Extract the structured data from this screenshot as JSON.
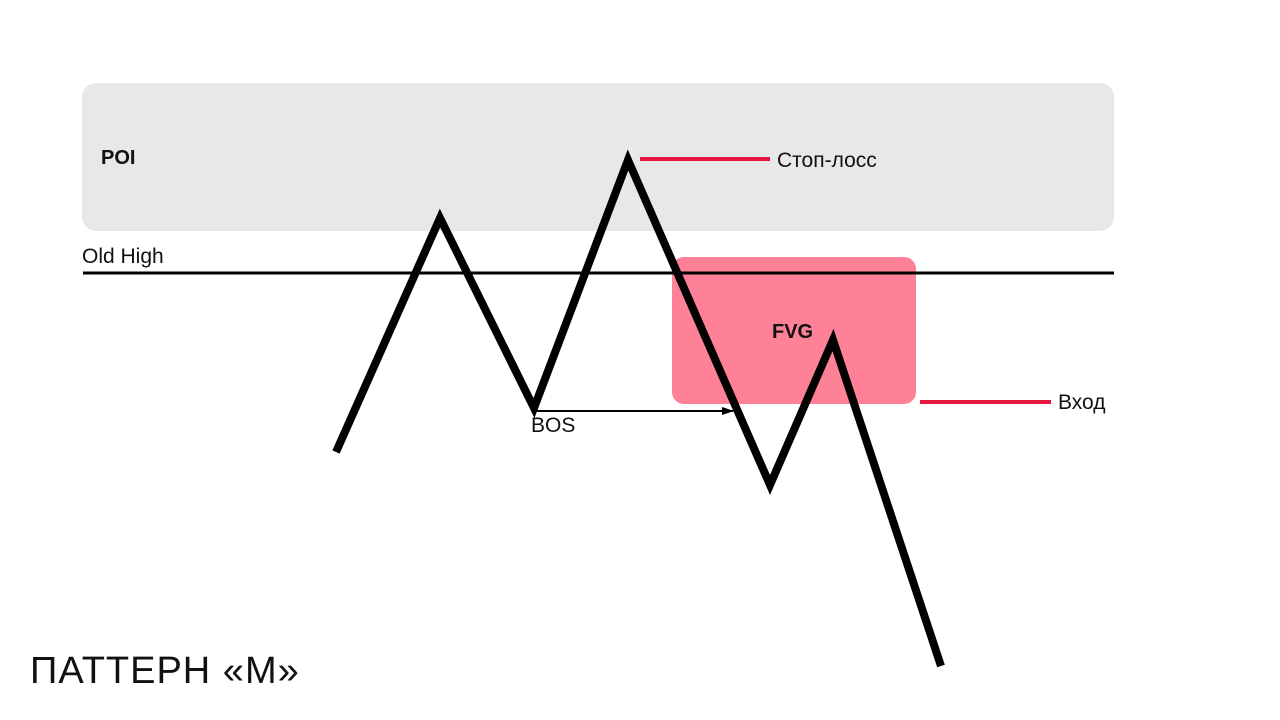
{
  "title": "ПАТТЕРН «М»",
  "labels": {
    "poi": "POI",
    "old_high": "Old High",
    "stop_loss": "Стоп-лосс",
    "fvg": "FVG",
    "entry": "Вход",
    "bos": "BOS"
  },
  "colors": {
    "poi_zone": "#e8e8e8",
    "fvg_zone": "#ff8198",
    "marker_red": "#e5173f",
    "price_line": "#000000",
    "text": "#111111"
  }
}
